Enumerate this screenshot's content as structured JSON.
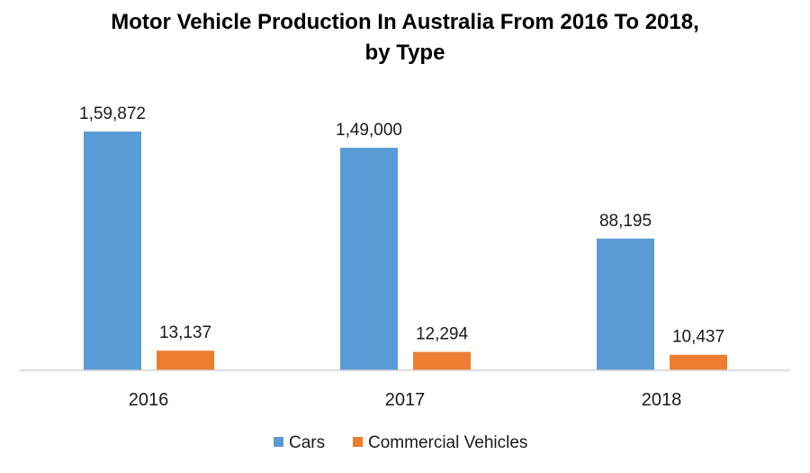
{
  "chart_data": {
    "type": "bar",
    "title_lines": [
      "Motor Vehicle Production In Australia From 2016 To 2018,",
      "by Type"
    ],
    "categories": [
      "2016",
      "2017",
      "2018"
    ],
    "series": [
      {
        "name": "Cars",
        "color": "#5b9bd5",
        "values": [
          159872,
          149000,
          88195
        ],
        "labels": [
          "1,59,872",
          "1,49,000",
          "88,195"
        ]
      },
      {
        "name": "Commercial Vehicles",
        "color": "#ed7d31",
        "values": [
          13137,
          12294,
          10437
        ],
        "labels": [
          "13,137",
          "12,294",
          "10,437"
        ]
      }
    ],
    "xlabel": "",
    "ylabel": "",
    "ylim": [
      0,
      170000
    ],
    "grid": false,
    "legend": "bottom"
  }
}
